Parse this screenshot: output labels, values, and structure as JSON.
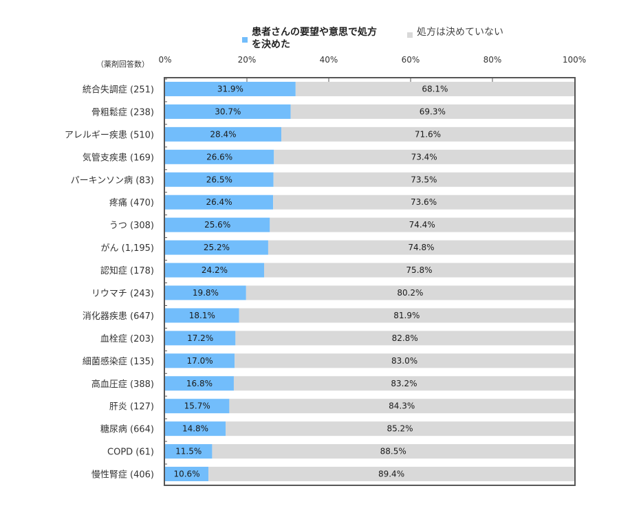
{
  "legend": {
    "requested": "患者さんの要望や意思で処方を決めた",
    "not_decided": "処方は決めていない"
  },
  "unit_label": "（薬剤回答数）",
  "colors": {
    "requested": "#72bdfb",
    "not_decided": "#d9d9d9",
    "frame": "#555555"
  },
  "chart_data": {
    "type": "bar",
    "orientation": "horizontal",
    "stacked": true,
    "percent_axis": true,
    "x_ticks": [
      "0%",
      "20%",
      "40%",
      "60%",
      "80%",
      "100%"
    ],
    "xlim": [
      0,
      100
    ],
    "legend_position": "top",
    "categories": [
      "統合失調症 (251)",
      "骨粗鬆症 (238)",
      "アレルギー疾患 (510)",
      "気管支疾患 (169)",
      "パーキンソン病 (83)",
      "疼痛 (470)",
      "うつ (308)",
      "がん (1,195)",
      "認知症 (178)",
      "リウマチ (243)",
      "消化器疾患 (647)",
      "血栓症 (203)",
      "細菌感染症 (135)",
      "高血圧症 (388)",
      "肝炎 (127)",
      "糖尿病 (664)",
      "COPD (61)",
      "慢性腎症 (406)"
    ],
    "series": [
      {
        "name": "患者さんの要望や意思で処方を決めた",
        "values": [
          31.9,
          30.7,
          28.4,
          26.6,
          26.5,
          26.4,
          25.6,
          25.2,
          24.2,
          19.8,
          18.1,
          17.2,
          17.0,
          16.8,
          15.7,
          14.8,
          11.5,
          10.6
        ],
        "labels": [
          "31.9%",
          "30.7%",
          "28.4%",
          "26.6%",
          "26.5%",
          "26.4%",
          "25.6%",
          "25.2%",
          "24.2%",
          "19.8%",
          "18.1%",
          "17.2%",
          "17.0%",
          "16.8%",
          "15.7%",
          "14.8%",
          "11.5%",
          "10.6%"
        ]
      },
      {
        "name": "処方は決めていない",
        "values": [
          68.1,
          69.3,
          71.6,
          73.4,
          73.5,
          73.6,
          74.4,
          74.8,
          75.8,
          80.2,
          81.9,
          82.8,
          83.0,
          83.2,
          84.3,
          85.2,
          88.5,
          89.4
        ],
        "labels": [
          "68.1%",
          "69.3%",
          "71.6%",
          "73.4%",
          "73.5%",
          "73.6%",
          "74.4%",
          "74.8%",
          "75.8%",
          "80.2%",
          "81.9%",
          "82.8%",
          "83.0%",
          "83.2%",
          "84.3%",
          "85.2%",
          "88.5%",
          "89.4%"
        ]
      }
    ]
  }
}
